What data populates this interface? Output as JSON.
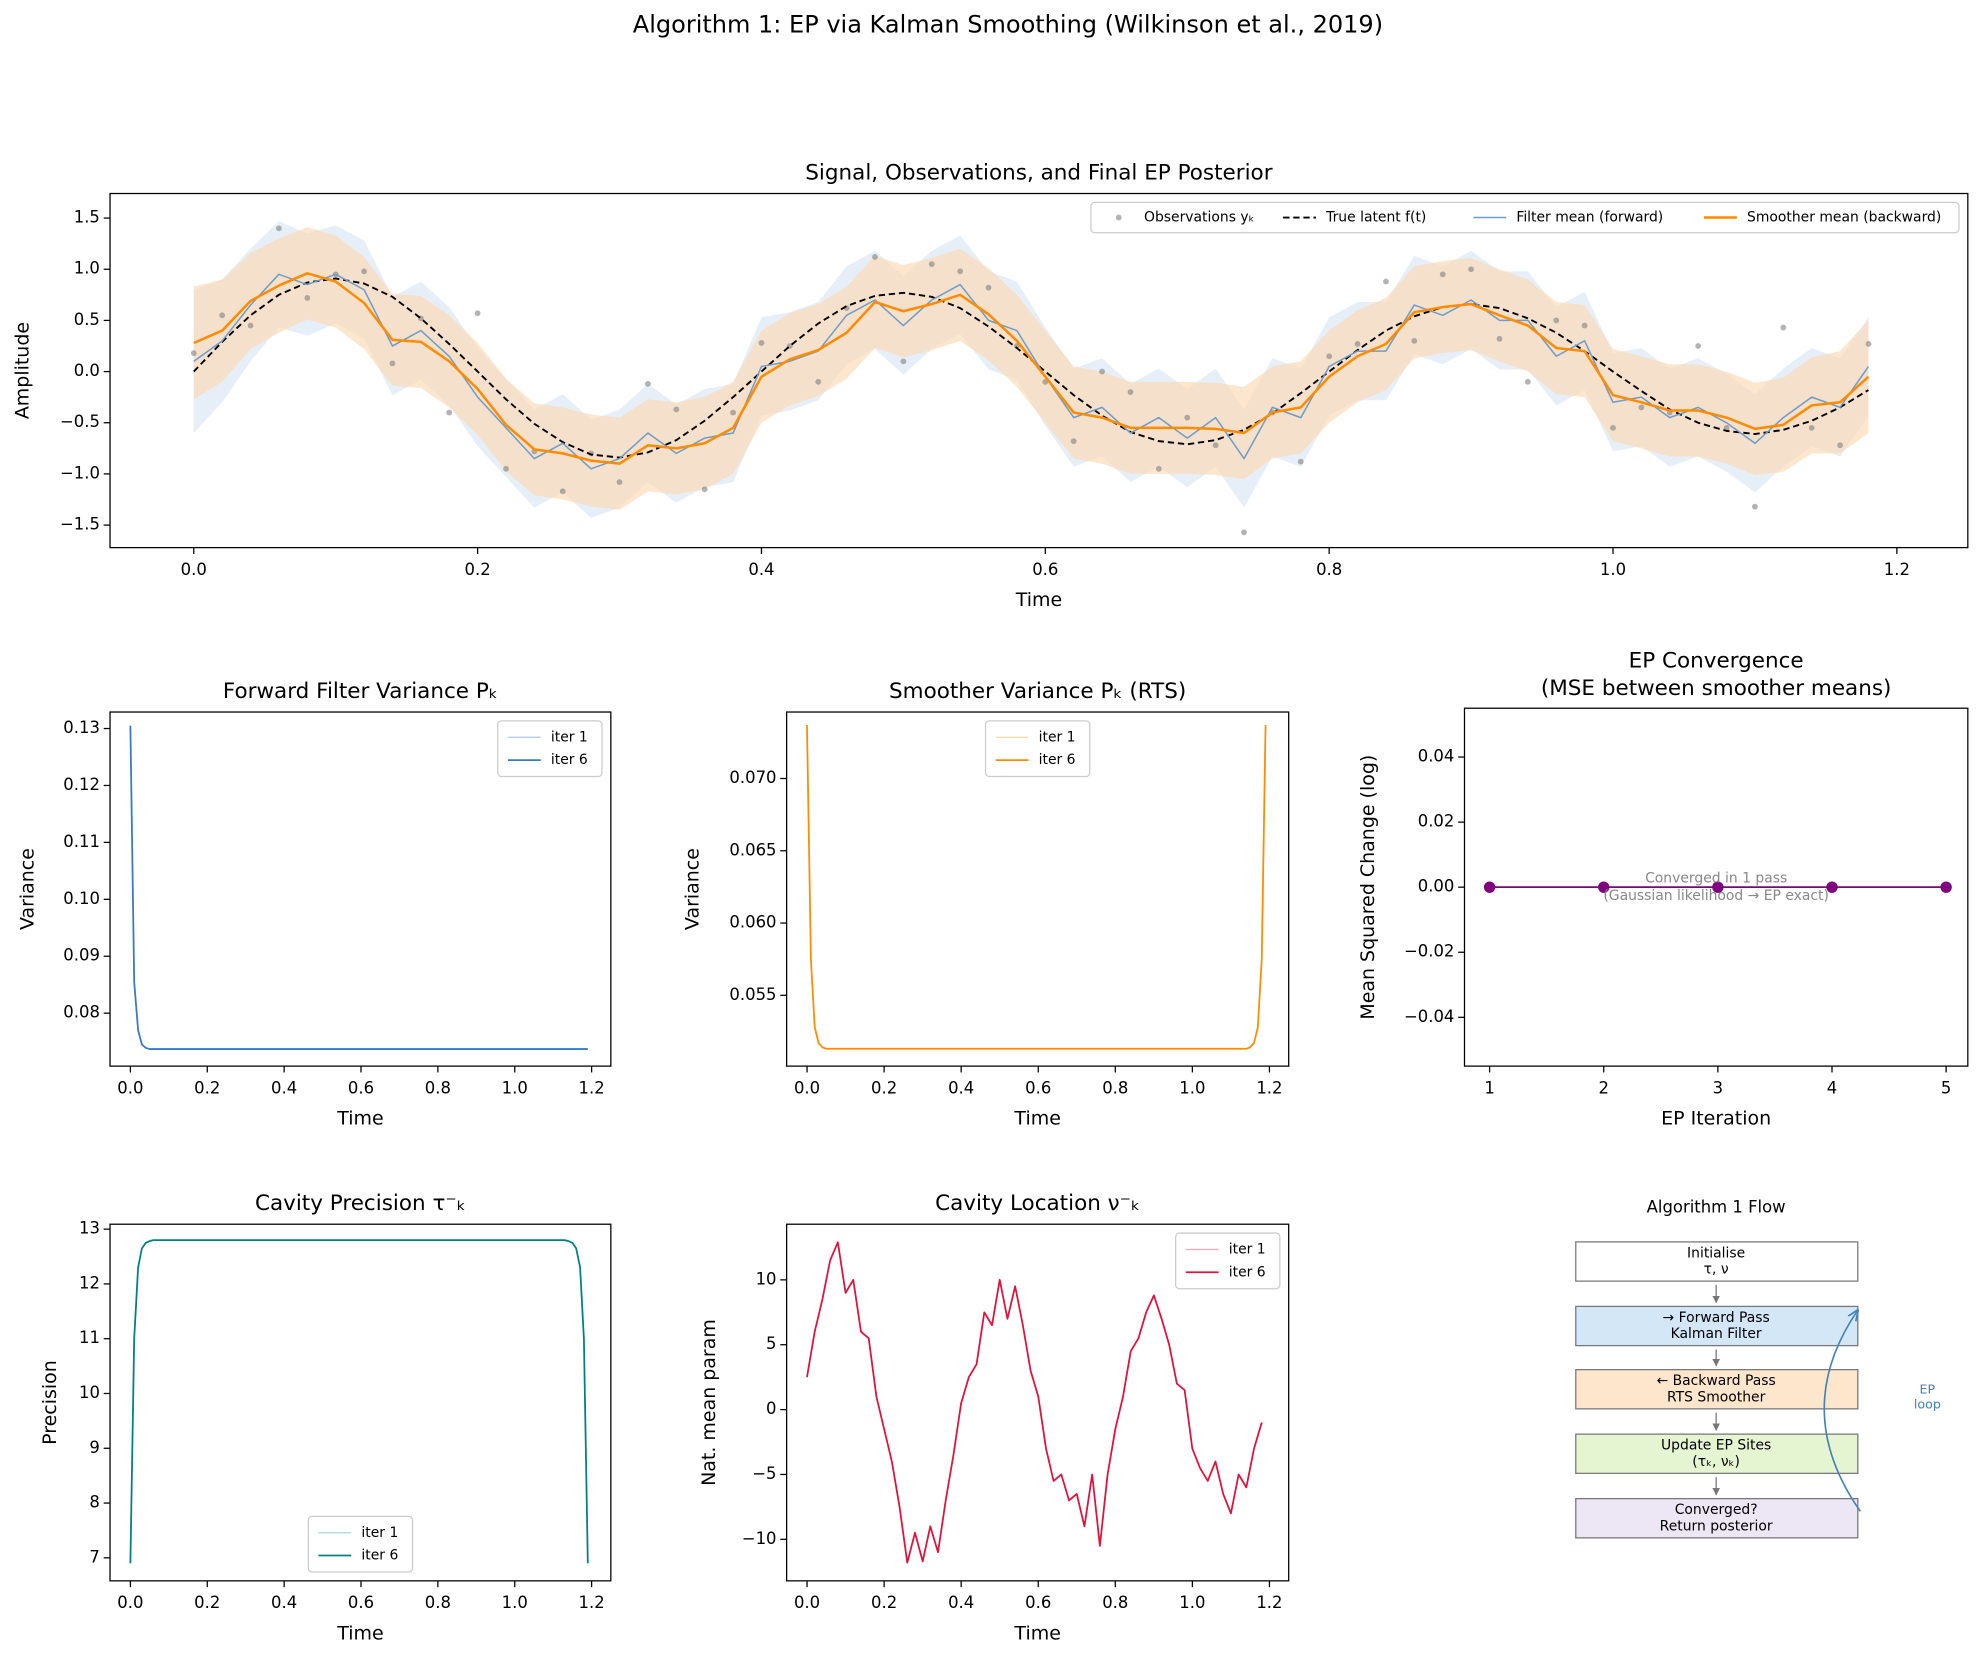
{
  "title": "Algorithm 1: EP via Kalman Smoothing (Wilkinson et al., 2019)",
  "chart_data": [
    {
      "type": "line",
      "title": "Signal, Observations, and Final EP Posterior",
      "xlabel": "Time",
      "ylabel": "Amplitude",
      "x": [
        0,
        0.02,
        0.04,
        0.06,
        0.08,
        0.1,
        0.12,
        0.14,
        0.16,
        0.18,
        0.2,
        0.22,
        0.24,
        0.26,
        0.28,
        0.3,
        0.32,
        0.34,
        0.36,
        0.38,
        0.4,
        0.42,
        0.44,
        0.46,
        0.48,
        0.5,
        0.52,
        0.54,
        0.56,
        0.58,
        0.6,
        0.62,
        0.64,
        0.66,
        0.68,
        0.7,
        0.72,
        0.74,
        0.76,
        0.78,
        0.8,
        0.82,
        0.84,
        0.86,
        0.88,
        0.9,
        0.92,
        0.94,
        0.96,
        0.98,
        1,
        1.02,
        1.04,
        1.06,
        1.08,
        1.1,
        1.12,
        1.14,
        1.16,
        1.18
      ],
      "series": [
        {
          "name": "Observations yₖ",
          "type": "scatter",
          "color": "#808080",
          "values": [
            0.18,
            0.55,
            0.45,
            1.4,
            0.72,
            0.95,
            0.98,
            0.08,
            0.52,
            -0.4,
            0.57,
            -0.95,
            -0.78,
            -1.17,
            -0.8,
            -1.08,
            -0.12,
            -0.37,
            -1.15,
            -0.4,
            0.28,
            0.25,
            -0.1,
            0.62,
            1.12,
            0.1,
            1.05,
            0.98,
            0.82,
            0.25,
            -0.1,
            -0.68,
            0,
            -0.2,
            -0.95,
            -0.45,
            -0.72,
            -1.57,
            -0.4,
            -0.88,
            0.15,
            0.27,
            0.88,
            0.3,
            0.95,
            1.0,
            0.32,
            -0.1,
            0.5,
            0.45,
            -0.55,
            -0.35,
            -0.4,
            0.25,
            -0.55,
            -1.32,
            0.43,
            -0.55,
            -0.72,
            0.27
          ]
        },
        {
          "name": "True latent f(t)",
          "color": "#000000",
          "linestyle": "dashed",
          "values": [
            0,
            0.29,
            0.55,
            0.75,
            0.87,
            0.91,
            0.86,
            0.73,
            0.52,
            0.27,
            0,
            -0.27,
            -0.51,
            -0.69,
            -0.81,
            -0.84,
            -0.79,
            -0.67,
            -0.48,
            -0.25,
            0,
            0.25,
            0.47,
            0.64,
            0.74,
            0.77,
            0.73,
            0.62,
            0.44,
            0.23,
            0,
            -0.23,
            -0.43,
            -0.59,
            -0.68,
            -0.71,
            -0.67,
            -0.57,
            -0.41,
            -0.21,
            0,
            0.21,
            0.4,
            0.54,
            0.63,
            0.66,
            0.62,
            0.52,
            0.38,
            0.2,
            0,
            -0.19,
            -0.37,
            -0.5,
            -0.58,
            -0.61,
            -0.57,
            -0.48,
            -0.35,
            -0.18
          ]
        },
        {
          "name": "Filter mean (forward)",
          "color": "#6f9cc8",
          "band_color": "#dce8f3",
          "values": [
            0.1,
            0.3,
            0.65,
            0.95,
            0.85,
            0.95,
            0.8,
            0.25,
            0.4,
            0.15,
            -0.25,
            -0.55,
            -0.85,
            -0.7,
            -0.95,
            -0.85,
            -0.6,
            -0.8,
            -0.65,
            -0.6,
            0.05,
            0.1,
            0.2,
            0.55,
            0.7,
            0.45,
            0.7,
            0.85,
            0.5,
            0.4,
            -0.05,
            -0.45,
            -0.35,
            -0.6,
            -0.45,
            -0.65,
            -0.45,
            -0.85,
            -0.35,
            -0.45,
            0.05,
            0.2,
            0.2,
            0.65,
            0.55,
            0.7,
            0.5,
            0.5,
            0.15,
            0.3,
            -0.3,
            -0.25,
            -0.45,
            -0.35,
            -0.5,
            -0.7,
            -0.45,
            -0.25,
            -0.35,
            0.05
          ],
          "band": [
            0.7,
            0.6,
            0.55,
            0.52,
            0.5,
            0.48,
            0.48,
            0.48,
            0.48,
            0.48,
            0.48,
            0.48,
            0.48,
            0.48,
            0.48,
            0.48,
            0.48,
            0.48,
            0.48,
            0.48,
            0.48,
            0.48,
            0.48,
            0.48,
            0.48,
            0.48,
            0.48,
            0.48,
            0.48,
            0.48,
            0.48,
            0.48,
            0.48,
            0.48,
            0.48,
            0.48,
            0.48,
            0.48,
            0.48,
            0.48,
            0.48,
            0.48,
            0.48,
            0.48,
            0.48,
            0.48,
            0.48,
            0.48,
            0.48,
            0.48,
            0.48,
            0.48,
            0.48,
            0.48,
            0.48,
            0.48,
            0.48,
            0.48,
            0.48,
            0.48
          ]
        },
        {
          "name": "Smoother mean (backward)",
          "color": "#ff8c00",
          "band_color": "#fbdcb8",
          "values": [
            0.28,
            0.4,
            0.69,
            0.84,
            0.96,
            0.88,
            0.67,
            0.31,
            0.29,
            0.1,
            -0.17,
            -0.52,
            -0.76,
            -0.8,
            -0.87,
            -0.9,
            -0.72,
            -0.75,
            -0.7,
            -0.55,
            -0.05,
            0.12,
            0.21,
            0.38,
            0.68,
            0.59,
            0.66,
            0.75,
            0.56,
            0.3,
            -0.05,
            -0.4,
            -0.45,
            -0.55,
            -0.55,
            -0.55,
            -0.56,
            -0.6,
            -0.4,
            -0.35,
            -0.05,
            0.15,
            0.27,
            0.58,
            0.63,
            0.66,
            0.55,
            0.45,
            0.23,
            0.2,
            -0.23,
            -0.3,
            -0.38,
            -0.38,
            -0.45,
            -0.56,
            -0.52,
            -0.33,
            -0.3,
            -0.05
          ],
          "band": [
            0.55,
            0.5,
            0.47,
            0.46,
            0.45,
            0.45,
            0.45,
            0.45,
            0.45,
            0.45,
            0.45,
            0.45,
            0.45,
            0.45,
            0.45,
            0.45,
            0.45,
            0.45,
            0.45,
            0.45,
            0.45,
            0.45,
            0.45,
            0.45,
            0.45,
            0.45,
            0.45,
            0.45,
            0.45,
            0.45,
            0.45,
            0.45,
            0.45,
            0.45,
            0.45,
            0.45,
            0.45,
            0.45,
            0.45,
            0.45,
            0.45,
            0.45,
            0.45,
            0.45,
            0.45,
            0.45,
            0.45,
            0.45,
            0.45,
            0.45,
            0.45,
            0.45,
            0.45,
            0.45,
            0.45,
            0.45,
            0.46,
            0.47,
            0.5,
            0.55
          ]
        }
      ],
      "xlim": [
        -0.059,
        1.25
      ],
      "ylim": [
        -1.72,
        1.74
      ],
      "xticks": [
        {
          "value": 0,
          "label": "0.0"
        },
        0.2,
        0.4,
        0.6,
        0.8,
        {
          "value": 1,
          "label": "1.0"
        },
        1.2
      ],
      "yticks": [
        {
          "value": -1.5,
          "label": "−1.5"
        },
        {
          "value": -1,
          "label": "−1.0"
        },
        {
          "value": -0.5,
          "label": "−0.5"
        },
        {
          "value": 0,
          "label": "0.0"
        },
        0.5,
        {
          "value": 1,
          "label": "1.0"
        },
        1.5
      ],
      "legend": "upper right"
    },
    {
      "type": "line",
      "title": "Forward Filter Variance Pₖ",
      "xlabel": "Time",
      "ylabel": "Variance",
      "x": [
        0,
        0.01,
        0.02,
        0.03,
        0.04,
        0.05,
        1.19
      ],
      "series": [
        {
          "name": "iter 1",
          "color": "#b7cde8",
          "values": [
            0.1305,
            0.0855,
            0.077,
            0.0745,
            0.0739,
            0.0737,
            0.0737
          ]
        },
        {
          "name": "iter 6",
          "color": "#3a78c4",
          "values": [
            0.1305,
            0.0855,
            0.077,
            0.0745,
            0.0739,
            0.0737,
            0.0737
          ]
        }
      ],
      "xlim": [
        -0.053,
        1.25
      ],
      "ylim": [
        0.0707,
        0.1329
      ],
      "xticks": [
        {
          "value": 0,
          "label": "0.0"
        },
        0.2,
        0.4,
        0.6,
        0.8,
        {
          "value": 1,
          "label": "1.0"
        },
        1.2
      ],
      "yticks": [
        0.08,
        0.09,
        {
          "value": 0.1,
          "label": "0.10"
        },
        0.11,
        0.12,
        0.13
      ],
      "legend": "upper right"
    },
    {
      "type": "line",
      "title": "Smoother Variance Pₖ (RTS)",
      "xlabel": "Time",
      "ylabel": "Variance",
      "x": [
        0,
        0.01,
        0.02,
        0.03,
        0.04,
        0.05,
        1.14,
        1.15,
        1.16,
        1.17,
        1.18,
        1.19
      ],
      "series": [
        {
          "name": "iter 1",
          "color": "#ffdcb0",
          "values": [
            0.0737,
            0.0575,
            0.0528,
            0.0517,
            0.0514,
            0.0513,
            0.0513,
            0.0514,
            0.0517,
            0.0528,
            0.0575,
            0.0737
          ]
        },
        {
          "name": "iter 6",
          "color": "#ff8c00",
          "values": [
            0.0737,
            0.0575,
            0.0528,
            0.0517,
            0.0514,
            0.0513,
            0.0513,
            0.0514,
            0.0517,
            0.0528,
            0.0575,
            0.0737
          ]
        }
      ],
      "xlim": [
        -0.053,
        1.25
      ],
      "ylim": [
        0.0501,
        0.0746
      ],
      "xticks": [
        {
          "value": 0,
          "label": "0.0"
        },
        0.2,
        0.4,
        0.6,
        0.8,
        {
          "value": 1,
          "label": "1.0"
        },
        1.2
      ],
      "yticks": [
        0.055,
        {
          "value": 0.06,
          "label": "0.060"
        },
        0.065,
        {
          "value": 0.07,
          "label": "0.070"
        }
      ],
      "legend": "upper center"
    },
    {
      "type": "line",
      "title": [
        "EP Convergence",
        "(MSE between smoother means)"
      ],
      "xlabel": "EP Iteration",
      "ylabel": "Mean Squared Change (log)",
      "x": [
        1,
        2,
        3,
        4,
        5
      ],
      "series": [
        {
          "color": "#800080",
          "marker": true,
          "values": [
            0,
            0,
            0,
            0,
            0
          ]
        }
      ],
      "annotation": [
        "Converged in 1 pass",
        "(Gaussian likelihood → EP exact)"
      ],
      "xlim": [
        0.78,
        5.19
      ],
      "ylim": [
        -0.055,
        0.055
      ],
      "xticks": [
        1,
        2,
        3,
        4,
        5
      ],
      "yticks": [
        {
          "value": -0.04,
          "label": "−0.04"
        },
        {
          "value": -0.02,
          "label": "−0.02"
        },
        {
          "value": 0,
          "label": "0.00"
        },
        0.02,
        0.04
      ]
    },
    {
      "type": "line",
      "title": "Cavity Precision τ⁻ₖ",
      "xlabel": "Time",
      "ylabel": "Precision",
      "x": [
        0,
        0.01,
        0.02,
        0.03,
        0.04,
        0.05,
        0.06,
        1.13,
        1.14,
        1.15,
        1.16,
        1.17,
        1.18,
        1.19
      ],
      "series": [
        {
          "name": "iter 1",
          "color": "#a9d9e0",
          "values": [
            6.9,
            11.0,
            12.3,
            12.65,
            12.75,
            12.78,
            12.8,
            12.8,
            12.78,
            12.75,
            12.65,
            12.3,
            11.0,
            6.9
          ]
        },
        {
          "name": "iter 6",
          "color": "#008080",
          "values": [
            6.9,
            11.0,
            12.3,
            12.65,
            12.75,
            12.78,
            12.8,
            12.8,
            12.78,
            12.75,
            12.65,
            12.3,
            11.0,
            6.9
          ]
        }
      ],
      "xlim": [
        -0.053,
        1.25
      ],
      "ylim": [
        6.58,
        13.09
      ],
      "xticks": [
        {
          "value": 0,
          "label": "0.0"
        },
        0.2,
        0.4,
        0.6,
        0.8,
        {
          "value": 1,
          "label": "1.0"
        },
        1.2
      ],
      "yticks": [
        7,
        8,
        9,
        10,
        11,
        12,
        13
      ],
      "legend": "lower center"
    },
    {
      "type": "line",
      "title": "Cavity Location ν⁻ₖ",
      "xlabel": "Time",
      "ylabel": "Nat. mean param",
      "x": [
        0,
        0.02,
        0.04,
        0.06,
        0.08,
        0.1,
        0.12,
        0.14,
        0.16,
        0.18,
        0.2,
        0.22,
        0.24,
        0.26,
        0.28,
        0.3,
        0.32,
        0.34,
        0.36,
        0.38,
        0.4,
        0.42,
        0.44,
        0.46,
        0.48,
        0.5,
        0.52,
        0.54,
        0.56,
        0.58,
        0.6,
        0.62,
        0.64,
        0.66,
        0.68,
        0.7,
        0.72,
        0.74,
        0.76,
        0.78,
        0.8,
        0.82,
        0.84,
        0.86,
        0.88,
        0.9,
        0.92,
        0.94,
        0.96,
        0.98,
        1,
        1.02,
        1.04,
        1.06,
        1.08,
        1.1,
        1.12,
        1.14,
        1.16,
        1.18
      ],
      "series": [
        {
          "name": "iter 1",
          "color": "#f4a6b8",
          "values": [
            2.5,
            6.0,
            8.5,
            11.5,
            12.9,
            9.0,
            10.0,
            6.0,
            5.5,
            1.0,
            -1.5,
            -4.0,
            -7.5,
            -11.8,
            -9.5,
            -11.7,
            -9.0,
            -11.0,
            -7.0,
            -3.5,
            0.5,
            2.5,
            3.5,
            7.5,
            6.5,
            10.0,
            7.0,
            9.5,
            6.5,
            3.0,
            1.0,
            -3.0,
            -5.5,
            -5.0,
            -7.0,
            -6.5,
            -9.0,
            -5.0,
            -10.5,
            -5.0,
            -1.5,
            1.0,
            4.5,
            5.5,
            7.5,
            8.8,
            7.0,
            5.0,
            2.0,
            1.5,
            -3.0,
            -4.5,
            -5.5,
            -4.0,
            -6.5,
            -8.0,
            -5.0,
            -6.0,
            -3.0,
            -1.0
          ]
        },
        {
          "name": "iter 6",
          "color": "#dc143c",
          "values": [
            2.5,
            6.0,
            8.5,
            11.5,
            12.9,
            9.0,
            10.0,
            6.0,
            5.5,
            1.0,
            -1.5,
            -4.0,
            -7.5,
            -11.8,
            -9.5,
            -11.7,
            -9.0,
            -11.0,
            -7.0,
            -3.5,
            0.5,
            2.5,
            3.5,
            7.5,
            6.5,
            10.0,
            7.0,
            9.5,
            6.5,
            3.0,
            1.0,
            -3.0,
            -5.5,
            -5.0,
            -7.0,
            -6.5,
            -9.0,
            -5.0,
            -10.5,
            -5.0,
            -1.5,
            1.0,
            4.5,
            5.5,
            7.5,
            8.8,
            7.0,
            5.0,
            2.0,
            1.5,
            -3.0,
            -4.5,
            -5.5,
            -4.0,
            -6.5,
            -8.0,
            -5.0,
            -6.0,
            -3.0,
            -1.0
          ]
        }
      ],
      "xlim": [
        -0.053,
        1.25
      ],
      "ylim": [
        -13.2,
        14.29
      ],
      "xticks": [
        {
          "value": 0,
          "label": "0.0"
        },
        0.2,
        0.4,
        0.6,
        0.8,
        {
          "value": 1,
          "label": "1.0"
        },
        1.2
      ],
      "yticks": [
        {
          "value": -10,
          "label": "−10"
        },
        {
          "value": -5,
          "label": "−5"
        },
        0,
        5,
        10
      ],
      "legend": "upper right"
    }
  ],
  "flow": {
    "title": "Algorithm 1 Flow",
    "steps": [
      [
        "Initialise",
        "τ, ν"
      ],
      [
        "→ Forward Pass",
        "Kalman Filter"
      ],
      [
        "← Backward Pass",
        "RTS Smoother"
      ],
      [
        "Update EP Sites",
        "(τₖ, νₖ)"
      ],
      [
        "Converged?",
        "Return posterior"
      ]
    ],
    "loop_label": [
      "EP",
      "loop"
    ]
  }
}
